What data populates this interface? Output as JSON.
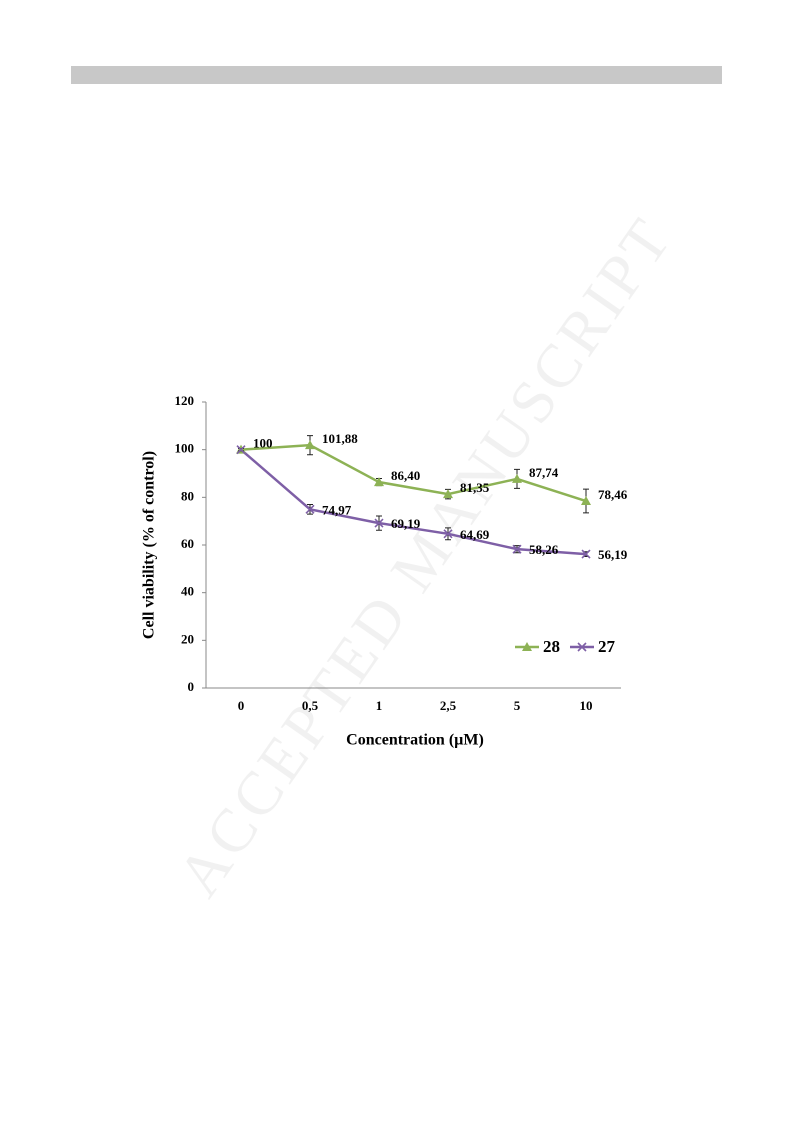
{
  "chart_data": {
    "type": "line",
    "watermark": "ACCEPTED MANUSCRIPT",
    "xlabel": "Concentration (µM)",
    "ylabel": "Cell viability (% of control)",
    "categories": [
      "0",
      "0,5",
      "1",
      "2,5",
      "5",
      "10"
    ],
    "series": [
      {
        "name": "28",
        "color": "#8db255",
        "marker": "triangle",
        "values": [
          100,
          101.88,
          86.4,
          81.35,
          87.74,
          78.46
        ],
        "errors": [
          0.5,
          4,
          1.5,
          2,
          4,
          5
        ],
        "value_labels": [
          "100",
          "101,88",
          "86,40",
          "81,35",
          "87,74",
          "78,46"
        ]
      },
      {
        "name": "27",
        "color": "#7e5fa6",
        "marker": "x",
        "values": [
          100,
          74.97,
          69.19,
          64.69,
          58.26,
          56.19
        ],
        "errors": [
          0.5,
          2,
          3,
          2.5,
          1.5,
          1
        ],
        "value_labels": [
          null,
          "74,97",
          "69,19",
          "64,69",
          "58,26",
          "56,19"
        ]
      }
    ],
    "ylim": [
      0,
      120
    ],
    "yticks": [
      0,
      20,
      40,
      60,
      80,
      100,
      120
    ],
    "legend": "lower right"
  }
}
